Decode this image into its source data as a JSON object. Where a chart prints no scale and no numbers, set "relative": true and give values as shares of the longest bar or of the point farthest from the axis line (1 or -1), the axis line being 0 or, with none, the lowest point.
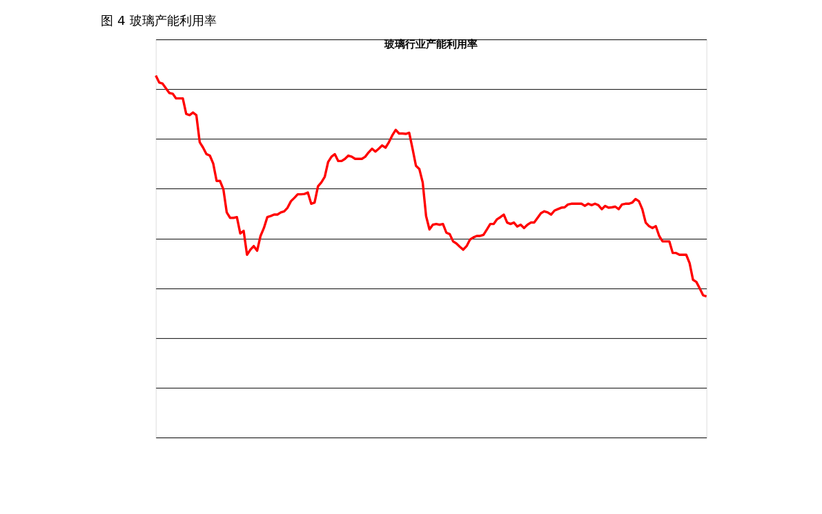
{
  "chart_data": {
    "type": "line",
    "title": "图 4 玻璃产能利用率",
    "subtitle": "玻璃行业产能利用率",
    "relative": true,
    "grid": "y",
    "categories": [
      null,
      null,
      null,
      null,
      null,
      null,
      null,
      null,
      null,
      null,
      null,
      null,
      null,
      null,
      null,
      null,
      null,
      null,
      null,
      null,
      null,
      null,
      null,
      null,
      null,
      null,
      null,
      null,
      null,
      null,
      null,
      null,
      null,
      null,
      null,
      null,
      null,
      null,
      null,
      null,
      null,
      null,
      null,
      null,
      null,
      null,
      null,
      null,
      null,
      null,
      null,
      null,
      null,
      null,
      null,
      null,
      null,
      null,
      null,
      null,
      null,
      null,
      null,
      null,
      null,
      null,
      null,
      null,
      null,
      null,
      null,
      null,
      null,
      null,
      null,
      null,
      null,
      null,
      null,
      null,
      null,
      null,
      null,
      null,
      null,
      null,
      null,
      null,
      null,
      null,
      null,
      null,
      null,
      null,
      null,
      null,
      null,
      null,
      null,
      null,
      null,
      null,
      null,
      null,
      null,
      null,
      null,
      null,
      null,
      null,
      null,
      null,
      null,
      null,
      null,
      null,
      null,
      null,
      null,
      null,
      null,
      null,
      null,
      null,
      null,
      null,
      null,
      null,
      null,
      null,
      null,
      null,
      null,
      null,
      null,
      null,
      null,
      null,
      null,
      null,
      null,
      null,
      null,
      null,
      null,
      null,
      null,
      null,
      null,
      null,
      null,
      null,
      null,
      null,
      null,
      null,
      null,
      null,
      null,
      null,
      null,
      null,
      null,
      null
    ],
    "series": [
      {
        "color": "#ff0000",
        "values": [
          1.0,
          0.981,
          0.978,
          0.965,
          0.952,
          0.95,
          0.937,
          0.937,
          0.937,
          0.894,
          0.891,
          0.898,
          0.891,
          0.816,
          0.801,
          0.783,
          0.779,
          0.757,
          0.709,
          0.709,
          0.686,
          0.622,
          0.607,
          0.607,
          0.609,
          0.564,
          0.571,
          0.505,
          0.519,
          0.529,
          0.516,
          0.557,
          0.579,
          0.609,
          0.612,
          0.616,
          0.616,
          0.622,
          0.625,
          0.635,
          0.653,
          0.662,
          0.672,
          0.672,
          0.673,
          0.677,
          0.646,
          0.649,
          0.694,
          0.705,
          0.72,
          0.761,
          0.776,
          0.783,
          0.764,
          0.764,
          0.77,
          0.779,
          0.776,
          0.77,
          0.77,
          0.77,
          0.776,
          0.788,
          0.798,
          0.79,
          0.798,
          0.807,
          0.801,
          0.816,
          0.835,
          0.85,
          0.84,
          0.84,
          0.839,
          0.842,
          0.798,
          0.751,
          0.742,
          0.705,
          0.612,
          0.575,
          0.588,
          0.59,
          0.588,
          0.59,
          0.566,
          0.562,
          0.542,
          0.536,
          0.527,
          0.519,
          0.529,
          0.547,
          0.553,
          0.557,
          0.557,
          0.56,
          0.575,
          0.59,
          0.59,
          0.603,
          0.609,
          0.616,
          0.594,
          0.59,
          0.594,
          0.583,
          0.588,
          0.579,
          0.588,
          0.594,
          0.594,
          0.607,
          0.62,
          0.625,
          0.622,
          0.616,
          0.627,
          0.631,
          0.635,
          0.636,
          0.644,
          0.646,
          0.646,
          0.646,
          0.646,
          0.64,
          0.646,
          0.642,
          0.646,
          0.642,
          0.631,
          0.64,
          0.635,
          0.636,
          0.638,
          0.631,
          0.644,
          0.646,
          0.646,
          0.649,
          0.659,
          0.653,
          0.631,
          0.594,
          0.584,
          0.579,
          0.584,
          0.557,
          0.542,
          0.542,
          0.542,
          0.51,
          0.51,
          0.505,
          0.505,
          0.505,
          0.482,
          0.436,
          0.43,
          0.412,
          0.393,
          0.39
        ]
      }
    ]
  }
}
